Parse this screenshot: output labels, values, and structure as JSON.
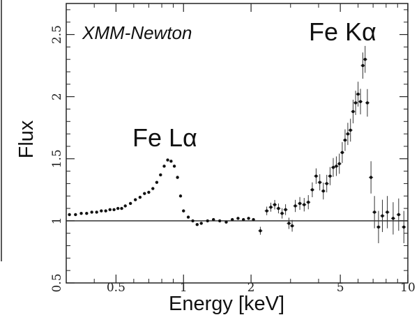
{
  "chart_data": {
    "type": "scatter",
    "title": "",
    "xlabel": "Energy [keV]",
    "ylabel": "Flux",
    "x_scale": "log",
    "xlim": [
      0.3,
      10
    ],
    "ylim": [
      0.5,
      2.75
    ],
    "grid": false,
    "x_ticks": [
      {
        "value": 0.5,
        "label": "0.5"
      },
      {
        "value": 1,
        "label": "1"
      },
      {
        "value": 2,
        "label": "2"
      },
      {
        "value": 5,
        "label": "5"
      },
      {
        "value": 10,
        "label": "10"
      }
    ],
    "y_ticks": [
      {
        "value": 0.5,
        "label": "0.5"
      },
      {
        "value": 1,
        "label": "1"
      },
      {
        "value": 1.5,
        "label": "1.5"
      },
      {
        "value": 2,
        "label": "2"
      },
      {
        "value": 2.5,
        "label": "2.5"
      }
    ],
    "reference_line": {
      "y": 1.0
    },
    "annotations": [
      {
        "text": "XMM-Newton",
        "italic": true
      },
      {
        "text": "Fe Lα",
        "x": 0.86,
        "y": 1.6
      },
      {
        "text": "Fe Kα",
        "x": 6.5,
        "y": 2.5
      }
    ],
    "series": [
      {
        "points": [
          {
            "x": 0.31,
            "y": 1.05
          },
          {
            "x": 0.33,
            "y": 1.05
          },
          {
            "x": 0.35,
            "y": 1.06
          },
          {
            "x": 0.37,
            "y": 1.06
          },
          {
            "x": 0.39,
            "y": 1.07
          },
          {
            "x": 0.41,
            "y": 1.07
          },
          {
            "x": 0.43,
            "y": 1.08
          },
          {
            "x": 0.45,
            "y": 1.08
          },
          {
            "x": 0.47,
            "y": 1.09
          },
          {
            "x": 0.49,
            "y": 1.09
          },
          {
            "x": 0.51,
            "y": 1.1
          },
          {
            "x": 0.53,
            "y": 1.1
          },
          {
            "x": 0.55,
            "y": 1.12
          },
          {
            "x": 0.58,
            "y": 1.14
          },
          {
            "x": 0.61,
            "y": 1.17
          },
          {
            "x": 0.64,
            "y": 1.19
          },
          {
            "x": 0.67,
            "y": 1.22
          },
          {
            "x": 0.7,
            "y": 1.23
          },
          {
            "x": 0.73,
            "y": 1.26
          },
          {
            "x": 0.76,
            "y": 1.31
          },
          {
            "x": 0.79,
            "y": 1.37
          },
          {
            "x": 0.82,
            "y": 1.44
          },
          {
            "x": 0.85,
            "y": 1.49
          },
          {
            "x": 0.88,
            "y": 1.48
          },
          {
            "x": 0.91,
            "y": 1.44
          },
          {
            "x": 0.94,
            "y": 1.35
          },
          {
            "x": 0.97,
            "y": 1.2
          },
          {
            "x": 1.0,
            "y": 1.08
          },
          {
            "x": 1.05,
            "y": 1.03
          },
          {
            "x": 1.1,
            "y": 1.0
          },
          {
            "x": 1.15,
            "y": 0.97
          },
          {
            "x": 1.2,
            "y": 0.98
          },
          {
            "x": 1.28,
            "y": 1.0
          },
          {
            "x": 1.36,
            "y": 1.01
          },
          {
            "x": 1.45,
            "y": 1.0
          },
          {
            "x": 1.55,
            "y": 0.99
          },
          {
            "x": 1.65,
            "y": 1.01
          },
          {
            "x": 1.75,
            "y": 1.02
          },
          {
            "x": 1.85,
            "y": 1.01
          },
          {
            "x": 1.95,
            "y": 1.02
          },
          {
            "x": 2.05,
            "y": 1.01
          },
          {
            "x": 2.2,
            "y": 0.92
          },
          {
            "x": 2.35,
            "y": 1.08
          },
          {
            "x": 2.45,
            "y": 1.11
          },
          {
            "x": 2.55,
            "y": 1.13
          },
          {
            "x": 2.65,
            "y": 1.1
          },
          {
            "x": 2.75,
            "y": 1.06
          },
          {
            "x": 2.85,
            "y": 1.09
          },
          {
            "x": 2.95,
            "y": 0.98
          },
          {
            "x": 3.05,
            "y": 0.96
          },
          {
            "x": 3.15,
            "y": 1.12
          },
          {
            "x": 3.3,
            "y": 1.14
          },
          {
            "x": 3.45,
            "y": 1.13
          },
          {
            "x": 3.6,
            "y": 1.15
          },
          {
            "x": 3.75,
            "y": 1.25
          },
          {
            "x": 3.9,
            "y": 1.36
          },
          {
            "x": 4.05,
            "y": 1.31
          },
          {
            "x": 4.2,
            "y": 1.24
          },
          {
            "x": 4.35,
            "y": 1.3
          },
          {
            "x": 4.5,
            "y": 1.36
          },
          {
            "x": 4.65,
            "y": 1.43
          },
          {
            "x": 4.8,
            "y": 1.44
          },
          {
            "x": 4.95,
            "y": 1.46
          },
          {
            "x": 5.1,
            "y": 1.55
          },
          {
            "x": 5.25,
            "y": 1.65
          },
          {
            "x": 5.4,
            "y": 1.7
          },
          {
            "x": 5.55,
            "y": 1.73
          },
          {
            "x": 5.7,
            "y": 1.88
          },
          {
            "x": 5.85,
            "y": 1.95
          },
          {
            "x": 6.0,
            "y": 2.02
          },
          {
            "x": 6.15,
            "y": 1.96
          },
          {
            "x": 6.3,
            "y": 2.25
          },
          {
            "x": 6.45,
            "y": 2.3
          },
          {
            "x": 6.6,
            "y": 1.95
          },
          {
            "x": 6.85,
            "y": 1.35
          },
          {
            "x": 7.1,
            "y": 1.07
          },
          {
            "x": 7.4,
            "y": 0.95
          },
          {
            "x": 7.7,
            "y": 1.04
          },
          {
            "x": 8.1,
            "y": 1.07
          },
          {
            "x": 8.6,
            "y": 1.02
          },
          {
            "x": 9.1,
            "y": 1.05
          },
          {
            "x": 9.6,
            "y": 0.95
          }
        ]
      }
    ]
  }
}
